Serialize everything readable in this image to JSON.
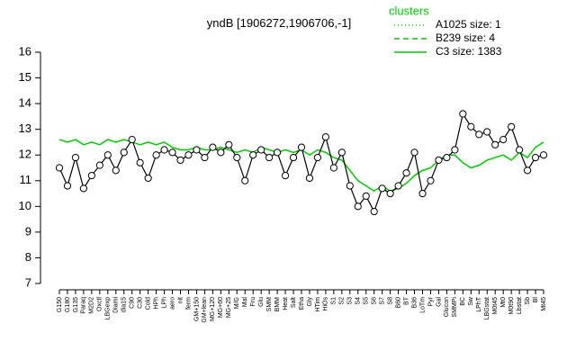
{
  "chart_data": {
    "type": "line",
    "title": "yndB [1906272,1906706,-1]",
    "categories": [
      "G150",
      "G180",
      "G135",
      "Paraq",
      "M2D2",
      "Oxctl",
      "LBGexp",
      "Diami",
      "dia15",
      "C90",
      "C30",
      "Cold",
      "HPh",
      "LPh",
      "aero",
      "nit",
      "ferm",
      "GM+150",
      "GM+lean",
      "MG+120",
      "MG+60",
      "MG+25",
      "M/G",
      "Mal",
      "Fru",
      "Glu",
      "SMM",
      "BMM",
      "Heat",
      "Salt",
      "Etha",
      "Gly",
      "HTim",
      "HiOs",
      "S1",
      "S2",
      "S3",
      "S4",
      "S5",
      "S6",
      "S7",
      "S8",
      "B60",
      "BT",
      "B36",
      "LoTm",
      "Pyr",
      "Gal",
      "Glucon",
      "SMMPi",
      "BC",
      "Sw",
      "LPhT",
      "LBGstat",
      "M0t45",
      "Mt0",
      "M0t90",
      "Lbstat",
      "Sb",
      "Bl",
      "Mt45"
    ],
    "ylim": [
      7,
      16
    ],
    "yticks": [
      7,
      8,
      9,
      10,
      11,
      12,
      13,
      14,
      15,
      16
    ],
    "legend_title": "clusters",
    "series": [
      {
        "color": "#000000",
        "markers": true,
        "values": [
          11.5,
          10.8,
          11.9,
          10.7,
          11.2,
          11.6,
          12.0,
          11.4,
          12.1,
          12.6,
          11.7,
          11.1,
          12.0,
          12.2,
          12.1,
          11.8,
          12.0,
          12.2,
          11.9,
          12.3,
          12.1,
          12.4,
          11.9,
          11.0,
          12.0,
          12.2,
          11.9,
          12.1,
          11.2,
          11.9,
          12.3,
          11.1,
          11.9,
          12.7,
          11.5,
          12.1,
          10.8,
          10.0,
          10.4,
          9.8,
          10.7,
          10.5,
          10.8,
          11.3,
          12.1,
          10.5,
          11.0,
          11.8,
          11.9,
          12.2,
          13.6,
          13.1,
          12.8,
          12.9,
          12.4,
          12.6,
          13.1,
          12.2,
          11.4,
          11.9,
          12.0
        ]
      },
      {
        "name": "A1025 size: 1",
        "color": "#00cc00",
        "dash": "dotted"
      },
      {
        "name": "B239 size: 4",
        "color": "#00cc00",
        "dash": "dashed"
      },
      {
        "name": "C3 size: 1383",
        "color": "#00cc00",
        "dash": "solid",
        "values": [
          12.6,
          12.5,
          12.6,
          12.4,
          12.5,
          12.4,
          12.6,
          12.5,
          12.6,
          12.5,
          12.4,
          12.5,
          12.4,
          12.5,
          12.3,
          12.2,
          12.2,
          12.3,
          12.2,
          12.2,
          12.3,
          12.2,
          12.1,
          12.2,
          12.1,
          12.3,
          12.2,
          12.1,
          12.2,
          12.1,
          12.2,
          12.0,
          12.2,
          12.1,
          11.9,
          11.8,
          11.4,
          11.0,
          10.8,
          10.6,
          10.8,
          10.6,
          10.7,
          10.9,
          11.2,
          11.4,
          11.5,
          11.8,
          12.0,
          12.0,
          11.7,
          11.5,
          11.6,
          11.8,
          11.9,
          12.0,
          11.8,
          12.1,
          11.9,
          12.3,
          12.5
        ]
      }
    ]
  }
}
